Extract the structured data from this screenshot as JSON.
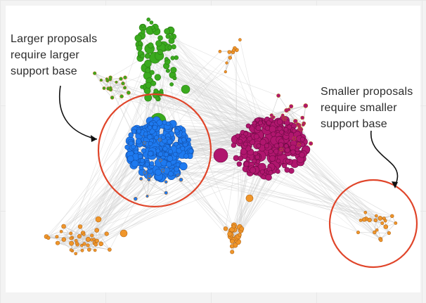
{
  "annotations": {
    "left": "Larger proposals\nrequire larger\nsupport base",
    "right": "Smaller proposals\nrequire smaller\nsupport base"
  },
  "colors": {
    "green": "#3aaa1e",
    "blue": "#1e7af0",
    "magenta": "#b0166e",
    "orange": "#f0962a",
    "edge": "#cfcfcf",
    "highlight_circle": "#e0452a"
  }
}
